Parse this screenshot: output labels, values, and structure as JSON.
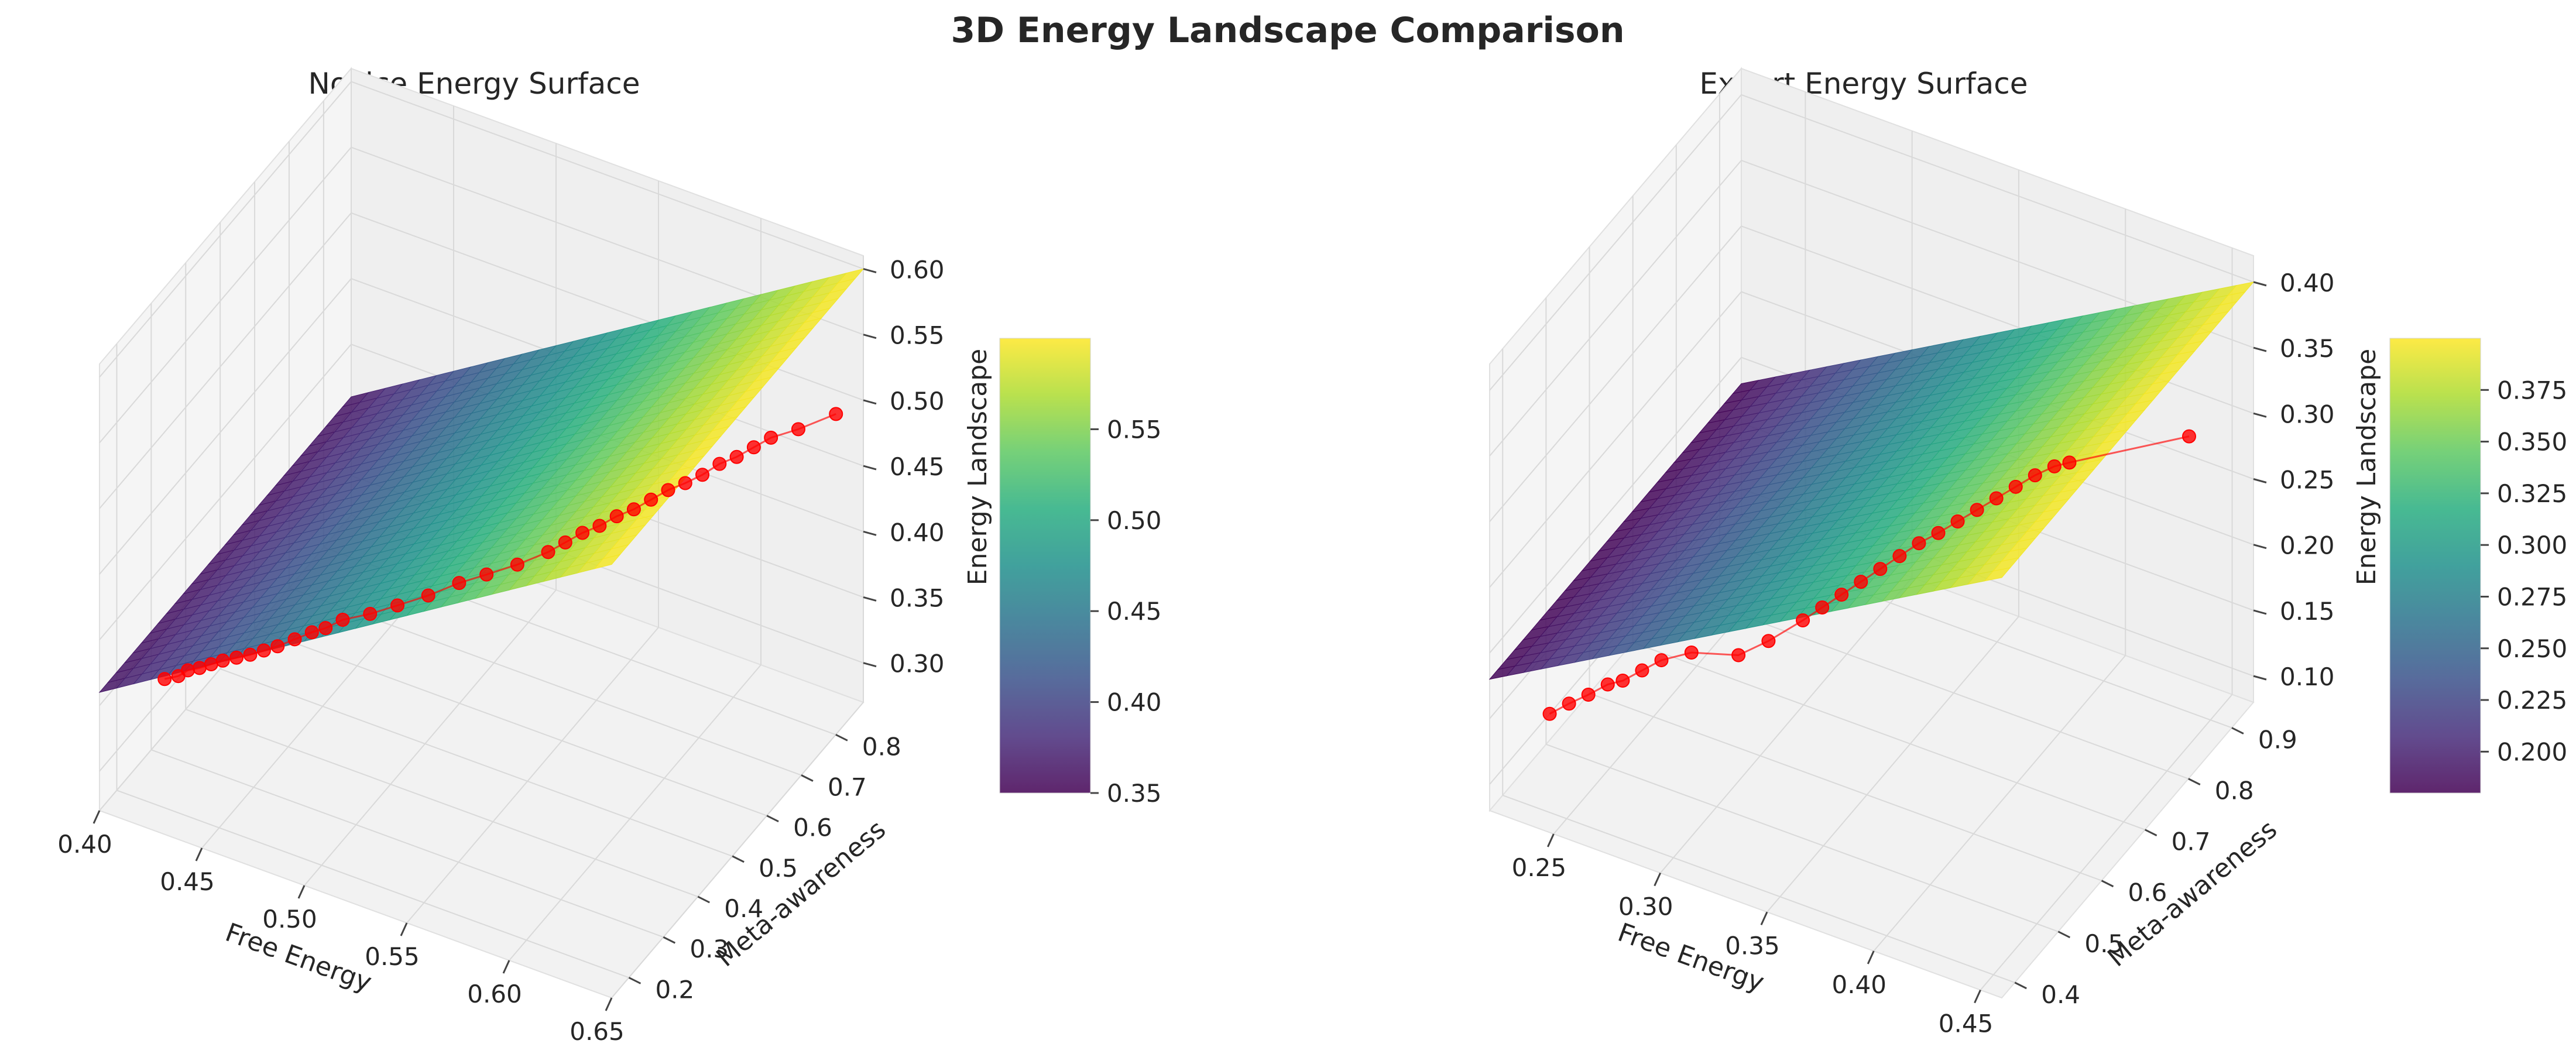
{
  "figure": {
    "suptitle": "3D Energy Landscape Comparison"
  },
  "chart_data": [
    {
      "type": "surface3d",
      "title": "Novice Energy Surface",
      "xlabel": "Free Energy",
      "ylabel": "Meta-awareness",
      "zlabel": "Energy Landscape",
      "colormap": "viridis",
      "xlim": [
        0.4,
        0.65
      ],
      "ylim": [
        0.15,
        0.88
      ],
      "zlim": [
        0.27,
        0.61
      ],
      "xticks": [
        "0.40",
        "0.45",
        "0.50",
        "0.55",
        "0.60",
        "0.65"
      ],
      "yticks": [
        "0.2",
        "0.3",
        "0.4",
        "0.5",
        "0.6",
        "0.7",
        "0.8"
      ],
      "zticks": [
        "0.30",
        "0.35",
        "0.40",
        "0.45",
        "0.50",
        "0.55",
        "0.60"
      ],
      "surface_corners": {
        "x0y0": 0.36,
        "x1y0": 0.6,
        "x0y1": 0.36,
        "x1y1": 0.6
      },
      "colorbar": {
        "range": [
          0.35,
          0.6
        ],
        "ticks": [
          "0.35",
          "0.40",
          "0.45",
          "0.50",
          "0.55"
        ]
      },
      "trajectory": {
        "color": "#ff0000",
        "points": [
          [
            0.42,
            0.22,
            0.36
          ],
          [
            0.425,
            0.23,
            0.362
          ],
          [
            0.428,
            0.24,
            0.365
          ],
          [
            0.432,
            0.25,
            0.366
          ],
          [
            0.436,
            0.26,
            0.368
          ],
          [
            0.44,
            0.27,
            0.37
          ],
          [
            0.445,
            0.28,
            0.372
          ],
          [
            0.45,
            0.29,
            0.374
          ],
          [
            0.455,
            0.3,
            0.377
          ],
          [
            0.46,
            0.31,
            0.38
          ],
          [
            0.465,
            0.33,
            0.382
          ],
          [
            0.47,
            0.35,
            0.384
          ],
          [
            0.475,
            0.36,
            0.387
          ],
          [
            0.48,
            0.38,
            0.39
          ],
          [
            0.49,
            0.4,
            0.394
          ],
          [
            0.5,
            0.42,
            0.4
          ],
          [
            0.51,
            0.45,
            0.404
          ],
          [
            0.52,
            0.48,
            0.41
          ],
          [
            0.53,
            0.5,
            0.416
          ],
          [
            0.54,
            0.53,
            0.42
          ],
          [
            0.55,
            0.56,
            0.426
          ],
          [
            0.555,
            0.58,
            0.43
          ],
          [
            0.56,
            0.6,
            0.434
          ],
          [
            0.565,
            0.62,
            0.436
          ],
          [
            0.57,
            0.64,
            0.44
          ],
          [
            0.575,
            0.66,
            0.442
          ],
          [
            0.58,
            0.68,
            0.446
          ],
          [
            0.585,
            0.7,
            0.45
          ],
          [
            0.59,
            0.72,
            0.452
          ],
          [
            0.595,
            0.74,
            0.455
          ],
          [
            0.6,
            0.76,
            0.46
          ],
          [
            0.605,
            0.78,
            0.462
          ],
          [
            0.61,
            0.8,
            0.466
          ],
          [
            0.615,
            0.82,
            0.47
          ],
          [
            0.625,
            0.84,
            0.476
          ],
          [
            0.64,
            0.86,
            0.49
          ]
        ]
      }
    },
    {
      "type": "surface3d",
      "title": "Expert Energy Surface",
      "xlabel": "Free Energy",
      "ylabel": "Meta-awareness",
      "zlabel": "Energy Landscape",
      "colormap": "viridis",
      "xlim": [
        0.22,
        0.46
      ],
      "ylim": [
        0.37,
        0.95
      ],
      "zlim": [
        0.08,
        0.42
      ],
      "xticks": [
        "0.25",
        "0.30",
        "0.35",
        "0.40",
        "0.45"
      ],
      "yticks": [
        "0.4",
        "0.5",
        "0.6",
        "0.7",
        "0.8",
        "0.9"
      ],
      "zticks": [
        "0.10",
        "0.15",
        "0.20",
        "0.25",
        "0.30",
        "0.35",
        "0.40"
      ],
      "surface_corners": {
        "x0y0": 0.18,
        "x1y0": 0.4,
        "x0y1": 0.18,
        "x1y1": 0.4
      },
      "colorbar": {
        "range": [
          0.18,
          0.4
        ],
        "ticks": [
          "0.200",
          "0.225",
          "0.250",
          "0.275",
          "0.300",
          "0.325",
          "0.350",
          "0.375"
        ]
      },
      "trajectory": {
        "color": "#ff0000",
        "points": [
          [
            0.24,
            0.41,
            0.15
          ],
          [
            0.245,
            0.43,
            0.153
          ],
          [
            0.25,
            0.45,
            0.155
          ],
          [
            0.255,
            0.47,
            0.158
          ],
          [
            0.26,
            0.48,
            0.16
          ],
          [
            0.265,
            0.5,
            0.163
          ],
          [
            0.27,
            0.52,
            0.166
          ],
          [
            0.28,
            0.54,
            0.17
          ],
          [
            0.3,
            0.55,
            0.176
          ],
          [
            0.31,
            0.57,
            0.185
          ],
          [
            0.32,
            0.6,
            0.195
          ],
          [
            0.325,
            0.62,
            0.2
          ],
          [
            0.33,
            0.64,
            0.205
          ],
          [
            0.335,
            0.66,
            0.21
          ],
          [
            0.34,
            0.68,
            0.215
          ],
          [
            0.345,
            0.7,
            0.22
          ],
          [
            0.35,
            0.72,
            0.225
          ],
          [
            0.355,
            0.74,
            0.228
          ],
          [
            0.36,
            0.76,
            0.232
          ],
          [
            0.365,
            0.78,
            0.236
          ],
          [
            0.37,
            0.8,
            0.24
          ],
          [
            0.375,
            0.82,
            0.244
          ],
          [
            0.38,
            0.84,
            0.248
          ],
          [
            0.385,
            0.86,
            0.25
          ],
          [
            0.39,
            0.87,
            0.252
          ],
          [
            0.44,
            0.9,
            0.29
          ]
        ]
      }
    }
  ]
}
